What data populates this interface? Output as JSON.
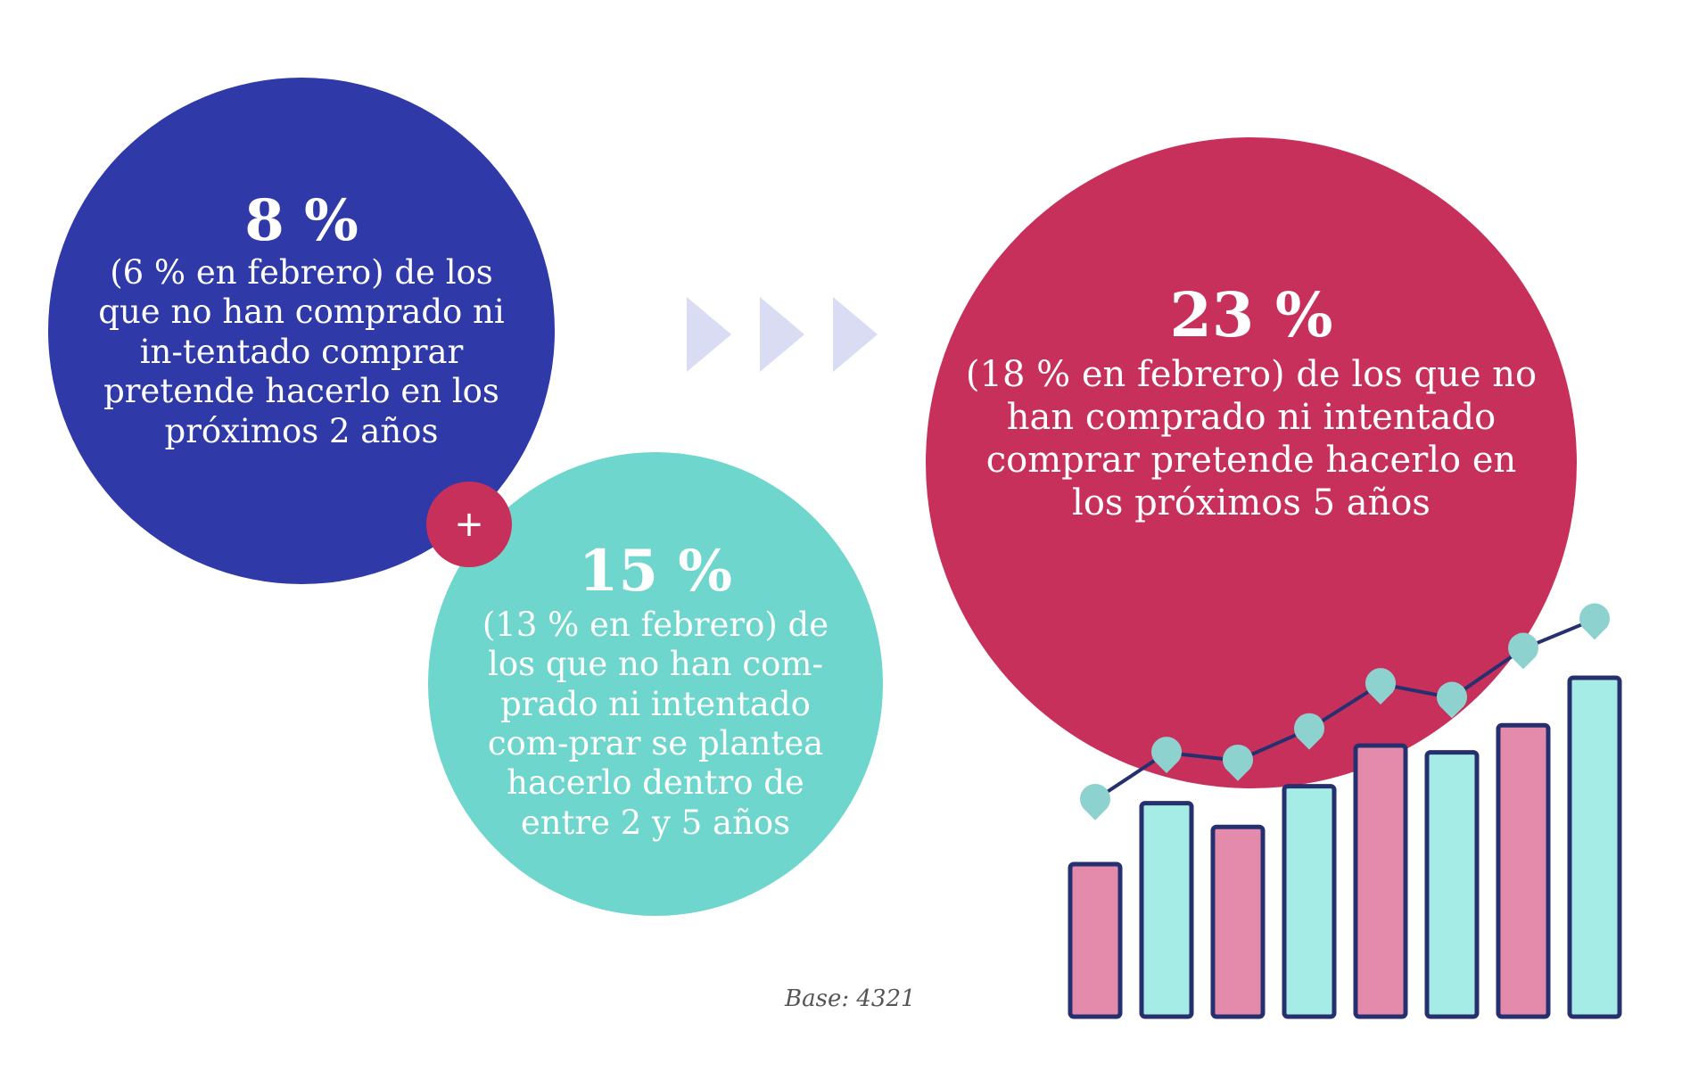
{
  "circles": {
    "blue": {
      "stat": "8 %",
      "text": "(6 % en febrero) de los que no han comprado ni in-tentado comprar pretende hacerlo en los próximos 2 años",
      "color": "#3039a8"
    },
    "teal": {
      "stat": "15 %",
      "text": "(13 % en febrero) de los que no han com-prado ni intentado com-prar se plantea hacerlo dentro de entre  2 y 5 años",
      "color": "#6ed6cc"
    },
    "pink": {
      "stat": "23 %",
      "text": "(18 % en febrero) de los que no han comprado ni intentado comprar pretende hacerlo en los próximos 5 años",
      "color": "#c8305c"
    }
  },
  "plus": "+",
  "base": "Base: 4321",
  "decor": {
    "arrow_color": "#d9dcf2",
    "bar_colors": [
      "#e48aab",
      "#a5ebe6",
      "#e48aab",
      "#a5ebe6",
      "#e48aab",
      "#a5ebe6",
      "#e48aab",
      "#a5ebe6"
    ],
    "bar_levels": [
      0.45,
      0.63,
      0.56,
      0.68,
      0.8,
      0.78,
      0.86,
      1.0
    ],
    "line_levels": [
      0.06,
      0.3,
      0.26,
      0.42,
      0.65,
      0.58,
      0.83,
      0.98
    ],
    "outline_color": "#27306e",
    "marker_color": "#8ed2d0",
    "icons": [
      "chevron-right-icon",
      "bar-chart-icon",
      "map-pin-icon"
    ]
  }
}
